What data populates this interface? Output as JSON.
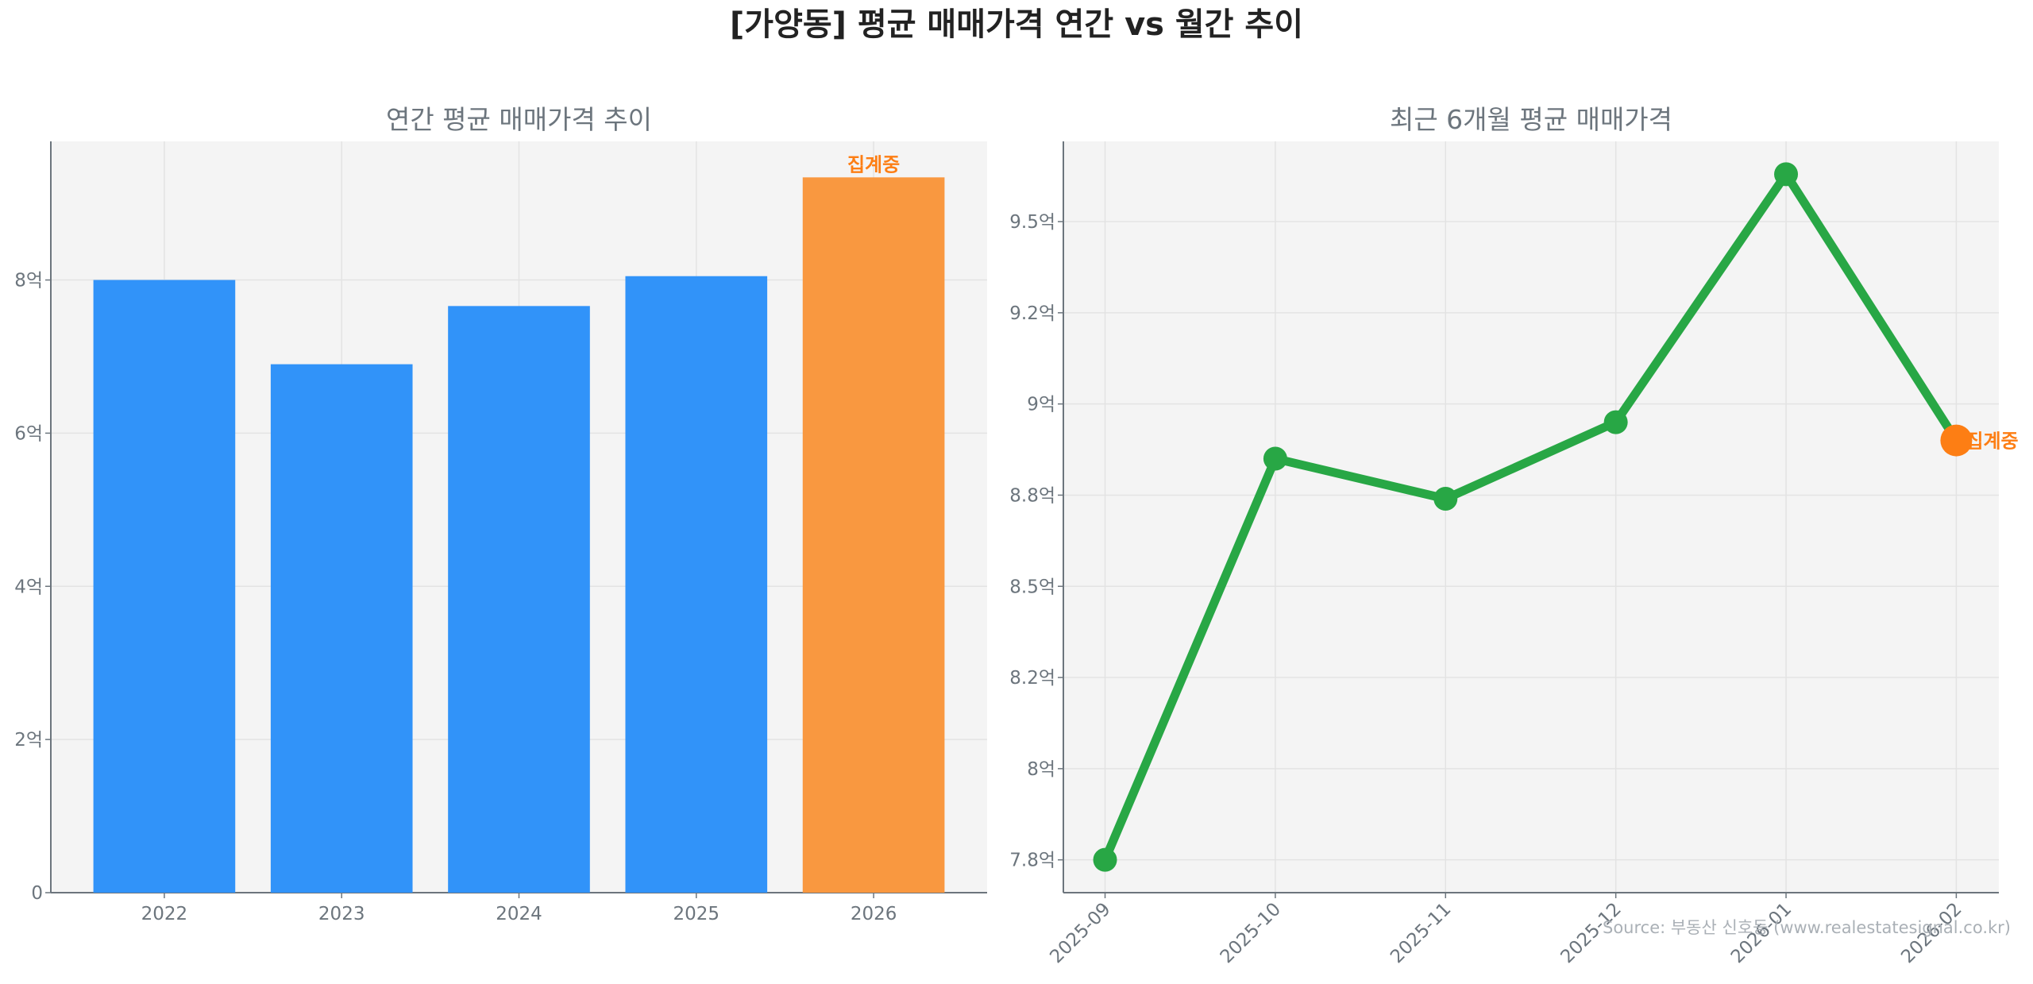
{
  "title": "[가양동] 평균 매매가격 연간 vs 월간 추이",
  "source": "Source: 부동산 신호등 (www.realestatesignal.co.kr)",
  "colors": {
    "bar": "#3193F9",
    "bar_partial": "#F99840",
    "line": "#28A745",
    "partial_marker": "#FD7E14",
    "plot_bg": "#F4F4F4",
    "text": "#6C757D"
  },
  "chart_data": [
    {
      "type": "bar",
      "title": "연간 평균 매매가격 추이",
      "categories": [
        "2022",
        "2023",
        "2024",
        "2025",
        "2026"
      ],
      "values": [
        8.0,
        6.9,
        7.66,
        8.05,
        9.34
      ],
      "unit": "억",
      "partial_index": 4,
      "annotation": "집계중",
      "ylim": [
        0,
        9.81
      ],
      "yticks": [
        0,
        2,
        4,
        6,
        8
      ],
      "ytick_labels": [
        "0",
        "2억",
        "4억",
        "6억",
        "8억"
      ],
      "grid": true
    },
    {
      "type": "line",
      "title": "최근 6개월 평균 매매가격",
      "categories": [
        "2025-09",
        "2025-10",
        "2025-11",
        "2025-12",
        "2026-01",
        "2026-02"
      ],
      "values": [
        7.75,
        8.85,
        8.74,
        8.95,
        9.63,
        8.9
      ],
      "unit": "억",
      "partial_index": 5,
      "annotation": "집계중",
      "ylim": [
        7.66,
        9.72
      ],
      "yticks": [
        7.75,
        8.0,
        8.25,
        8.5,
        8.75,
        9.0,
        9.25,
        9.5
      ],
      "ytick_labels": [
        "7.8억",
        "8억",
        "8.2억",
        "8.5억",
        "8.8억",
        "9억",
        "9.2억",
        "9.5억"
      ],
      "grid": true
    }
  ]
}
